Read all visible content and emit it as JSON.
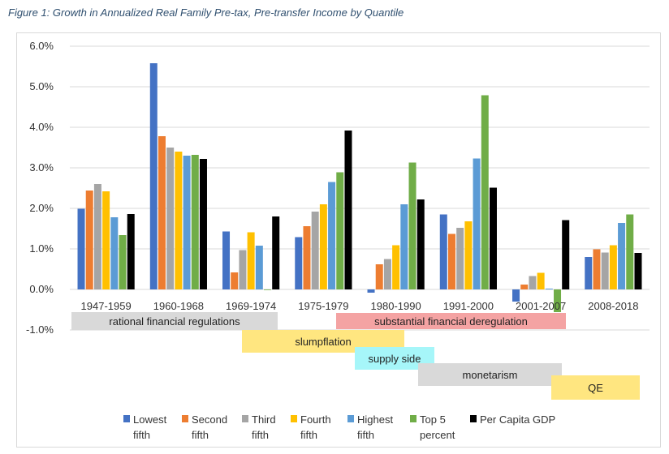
{
  "figure_caption": "Figure 1: Growth in Annualized Real Family Pre-tax, Pre-transfer Income by Quantile",
  "colors": {
    "Lowest fifth": "#4472c4",
    "Second fifth": "#ed7d31",
    "Third fifth": "#a5a5a5",
    "Fourth fifth": "#ffc000",
    "Highest fifth": "#5b9bd5",
    "Top 5 percent": "#70ad47",
    "Per Capita GDP": "#000000",
    "grid": "#d9d9d9"
  },
  "chart_data": {
    "type": "bar",
    "title": "",
    "xlabel": "",
    "ylabel": "",
    "ylim": [
      -0.01,
      0.06
    ],
    "yticks": [
      "6.0%",
      "5.0%",
      "4.0%",
      "3.0%",
      "2.0%",
      "1.0%",
      "0.0%",
      "-1.0%"
    ],
    "grid": true,
    "legend": "bottom",
    "categories": [
      "1947-1959",
      "1960-1968",
      "1969-1974",
      "1975-1979",
      "1980-1990",
      "1991-2000",
      "2001-2007",
      "2008-2018"
    ],
    "series": [
      {
        "name": "Lowest fifth",
        "legend_lines": [
          "Lowest",
          "fifth"
        ],
        "values": [
          0.0199,
          0.0558,
          0.0143,
          0.0129,
          -0.0008,
          0.0185,
          -0.003,
          0.008
        ]
      },
      {
        "name": "Second fifth",
        "legend_lines": [
          "Second",
          "fifth"
        ],
        "values": [
          0.0244,
          0.0378,
          0.0042,
          0.0156,
          0.0062,
          0.0137,
          0.0012,
          0.0099
        ]
      },
      {
        "name": "Third fifth",
        "legend_lines": [
          "Third",
          "fifth"
        ],
        "values": [
          0.026,
          0.035,
          0.0097,
          0.0192,
          0.0075,
          0.0152,
          0.0033,
          0.0091
        ]
      },
      {
        "name": "Fourth fifth",
        "legend_lines": [
          "Fourth",
          "fifth"
        ],
        "values": [
          0.0242,
          0.034,
          0.0141,
          0.021,
          0.0109,
          0.0168,
          0.0041,
          0.0109
        ]
      },
      {
        "name": "Highest fifth",
        "legend_lines": [
          "Highest",
          "fifth"
        ],
        "values": [
          0.0178,
          0.033,
          0.0108,
          0.0265,
          0.021,
          0.0323,
          0.0002,
          0.0164
        ]
      },
      {
        "name": "Top 5 percent",
        "legend_lines": [
          "Top 5",
          "percent"
        ],
        "values": [
          0.0134,
          0.0332,
          0.0,
          0.0289,
          0.0313,
          0.0479,
          -0.0056,
          0.0185
        ]
      },
      {
        "name": "Per Capita GDP",
        "legend_lines": [
          "Per Capita GDP",
          ""
        ],
        "values": [
          0.0186,
          0.0322,
          0.018,
          0.0392,
          0.0222,
          0.0251,
          0.0171,
          0.009
        ]
      }
    ],
    "annotations": [
      {
        "label": "rational financial regulations",
        "color": "#d9d9d9",
        "from": "1947-1959",
        "to": "1975-1979"
      },
      {
        "label": "substantial financial deregulation",
        "color": "#f4a3a3",
        "from": "1975-1979",
        "to": "2001-2007"
      },
      {
        "label": "slumpflation",
        "color": "#ffe680",
        "from": "1969-1974",
        "to": "1980-1990"
      },
      {
        "label": "supply side",
        "color": "#a6f6f9",
        "from": "1980-1990",
        "to": "1980-1990"
      },
      {
        "label": "monetarism",
        "color": "#d9d9d9",
        "from": "1991-2000",
        "to": "2001-2007"
      },
      {
        "label": "QE",
        "color": "#ffe680",
        "from": "2001-2007",
        "to": "2008-2018"
      }
    ]
  }
}
